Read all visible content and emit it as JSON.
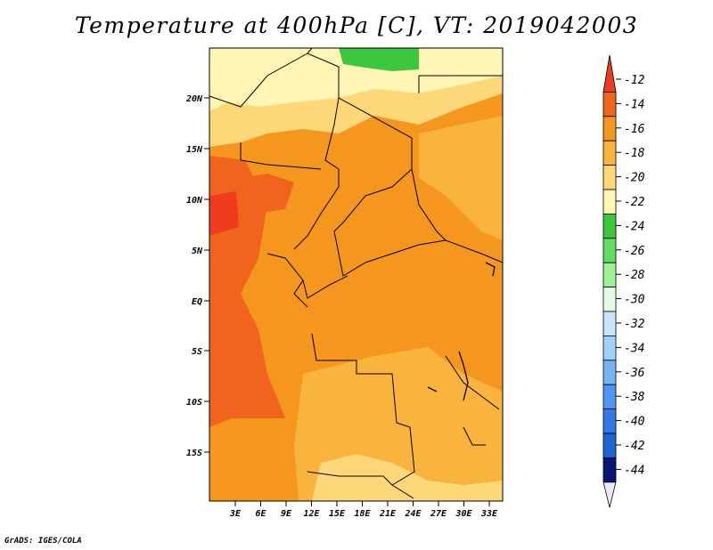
{
  "title": "Temperature at 400hPa [C], VT: 2019042003",
  "credit": "GrADS: IGES/COLA",
  "map": {
    "lat_ticks": [
      "20N",
      "15N",
      "10N",
      "5N",
      "EQ",
      "5S",
      "10S",
      "15S"
    ],
    "lon_ticks": [
      "3E",
      "6E",
      "9E",
      "12E",
      "15E",
      "18E",
      "21E",
      "24E",
      "27E",
      "30E",
      "33E"
    ]
  },
  "colorbar": {
    "labels": [
      "-12",
      "-14",
      "-16",
      "-18",
      "-20",
      "-22",
      "-24",
      "-26",
      "-28",
      "-30",
      "-32",
      "-34",
      "-36",
      "-38",
      "-40",
      "-42",
      "-44"
    ],
    "colors": [
      "#f03c1e",
      "#f0641e",
      "#f5961e",
      "#f8b43c",
      "#fdd778",
      "#fff5b4",
      "#3cc83c",
      "#64dc64",
      "#a0f096",
      "#e6fae6",
      "#c8e6fa",
      "#a0d2fa",
      "#78b4f0",
      "#5096f0",
      "#3278e6",
      "#1e64d2",
      "#0a1478",
      "#e8e8f8"
    ]
  }
}
